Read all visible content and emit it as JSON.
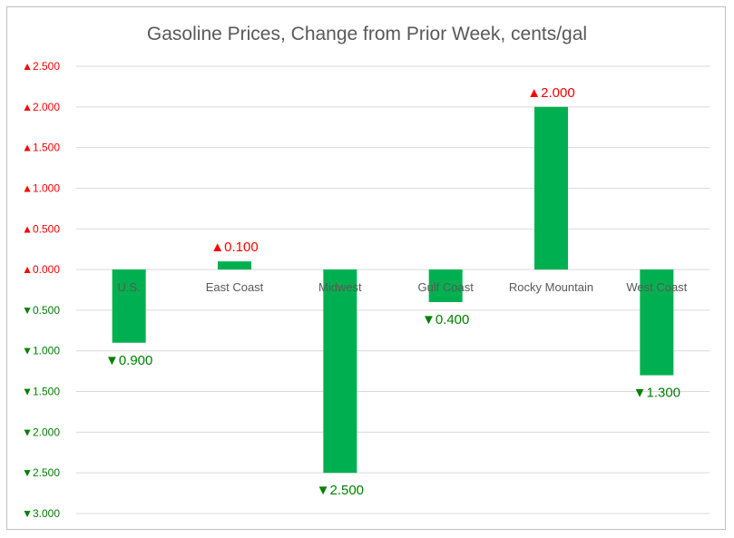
{
  "chart_data": {
    "type": "bar",
    "title": "Gasoline Prices, Change from Prior Week, cents/gal",
    "xlabel": "",
    "ylabel": "",
    "categories": [
      "U.S.",
      "East Coast",
      "Midwest",
      "Gulf Coast",
      "Rocky Mountain",
      "West Coast"
    ],
    "values": [
      -0.9,
      0.1,
      -2.5,
      -0.4,
      2.0,
      -1.3
    ],
    "data_labels": [
      "▼0.900",
      "▲0.100",
      "▼2.500",
      "▼0.400",
      "▲2.000",
      "▼1.300"
    ],
    "ylim": [
      -3.0,
      2.5
    ],
    "yticks": [
      2.5,
      2.0,
      1.5,
      1.0,
      0.5,
      0.0,
      -0.5,
      -1.0,
      -1.5,
      -2.0,
      -2.5,
      -3.0
    ],
    "ytick_labels": [
      "▲2.500",
      "▲2.000",
      "▲1.500",
      "▲1.000",
      "▲0.500",
      "▲0.000",
      "▼0.500",
      "▼1.000",
      "▼1.500",
      "▼2.000",
      "▼2.500",
      "▼3.000"
    ],
    "grid": true,
    "legend": "none",
    "colors": {
      "bar": "#00b050",
      "positive_label": "#ff0000",
      "negative_label": "#008000",
      "gridline": "#d9d9d9",
      "category_label": "#595959"
    }
  }
}
